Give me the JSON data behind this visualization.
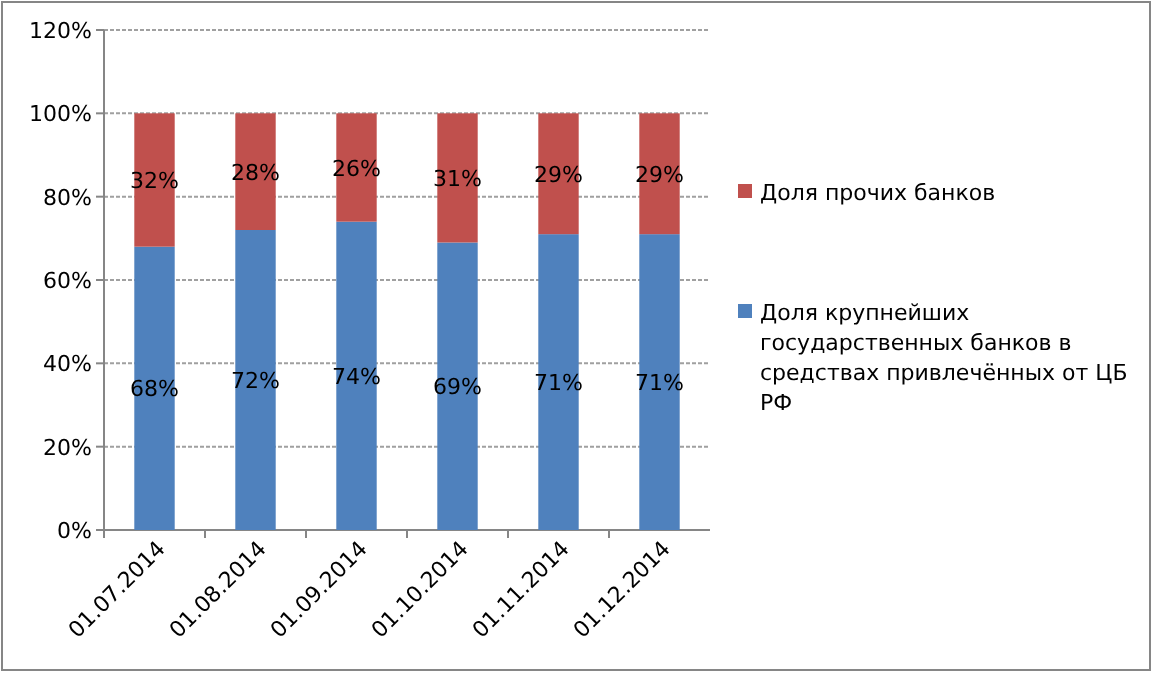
{
  "chart_data": {
    "type": "bar",
    "stacked": true,
    "categories": [
      "01.07.2014",
      "01.08.2014",
      "01.09.2014",
      "01.10.2014",
      "01.11.2014",
      "01.12.2014"
    ],
    "series": [
      {
        "name": "Доля крупнейших государственных банков в средствах привлечённых от ЦБ РФ",
        "color": "#4f81bd",
        "values": [
          68,
          72,
          74,
          69,
          71,
          71
        ],
        "value_labels": [
          "68%",
          "72%",
          "74%",
          "69%",
          "71%",
          "71%"
        ]
      },
      {
        "name": "Доля прочих банков",
        "color": "#c0504d",
        "values": [
          32,
          28,
          26,
          31,
          29,
          29
        ],
        "value_labels": [
          "32%",
          "28%",
          "26%",
          "31%",
          "29%",
          "29%"
        ]
      }
    ],
    "ylim": [
      0,
      120
    ],
    "yticks": [
      {
        "value": 0,
        "label": "0%"
      },
      {
        "value": 20,
        "label": "20%"
      },
      {
        "value": 40,
        "label": "40%"
      },
      {
        "value": 60,
        "label": "60%"
      },
      {
        "value": 80,
        "label": "80%"
      },
      {
        "value": 100,
        "label": "100%"
      },
      {
        "value": 120,
        "label": "120%"
      }
    ],
    "grid": "y",
    "legend": "right"
  }
}
